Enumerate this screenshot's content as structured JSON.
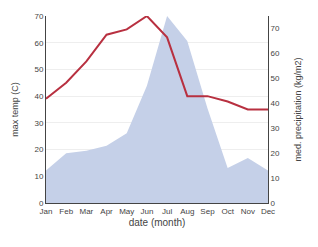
{
  "chart_data": {
    "type": "line",
    "categories": [
      "Jan",
      "Feb",
      "Mar",
      "Apr",
      "May",
      "Jun",
      "Jul",
      "Aug",
      "Sep",
      "Oct",
      "Nov",
      "Dec"
    ],
    "xlabel": "date (month)",
    "ylabel": "max temp (C)",
    "y2label": "med. precipitation (kg/m2)",
    "series": [
      {
        "type": "area",
        "axis": "y2",
        "color": "#c5d0e8",
        "values": [
          13,
          20,
          21,
          23,
          28,
          47,
          75,
          65,
          38,
          14,
          18,
          13
        ]
      },
      {
        "type": "line",
        "color": "#b83040",
        "values": [
          39,
          45,
          53,
          63,
          65,
          70,
          62,
          40,
          40,
          38,
          35,
          35
        ]
      }
    ],
    "ylim": [
      0,
      70
    ],
    "yticks": [
      0,
      10,
      20,
      30,
      40,
      50,
      60,
      70
    ],
    "y2lim": [
      0,
      75
    ],
    "y2ticks": [
      0,
      10,
      20,
      30,
      40,
      50,
      60,
      70
    ],
    "grid": true
  }
}
